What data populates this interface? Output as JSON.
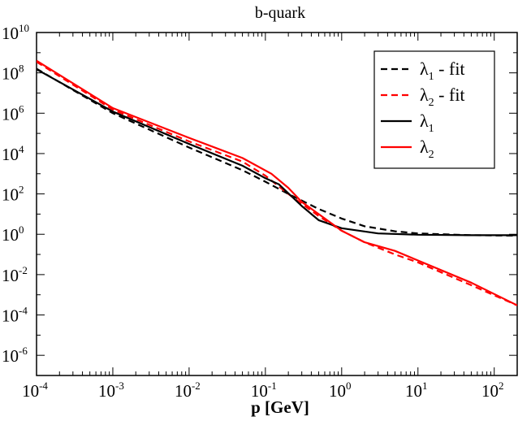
{
  "chart_data": {
    "type": "line",
    "title": "b-quark",
    "xlabel": "p [GeV]",
    "ylabel": "",
    "xscale": "log",
    "yscale": "log",
    "xlim": [
      0.0001,
      200
    ],
    "ylim": [
      1e-07,
      10000000000.0
    ],
    "x_ticks": [
      {
        "base": "10",
        "exp": "-4",
        "value": 0.0001
      },
      {
        "base": "10",
        "exp": "-3",
        "value": 0.001
      },
      {
        "base": "10",
        "exp": "-2",
        "value": 0.01
      },
      {
        "base": "10",
        "exp": "-1",
        "value": 0.1
      },
      {
        "base": "10",
        "exp": "0",
        "value": 1
      },
      {
        "base": "10",
        "exp": "1",
        "value": 10
      },
      {
        "base": "10",
        "exp": "2",
        "value": 100
      }
    ],
    "y_ticks": [
      {
        "base": "10",
        "exp": "-6",
        "value": 1e-06
      },
      {
        "base": "10",
        "exp": "-4",
        "value": 0.0001
      },
      {
        "base": "10",
        "exp": "-2",
        "value": 0.01
      },
      {
        "base": "10",
        "exp": "0",
        "value": 1
      },
      {
        "base": "10",
        "exp": "2",
        "value": 100
      },
      {
        "base": "10",
        "exp": "4",
        "value": 10000.0
      },
      {
        "base": "10",
        "exp": "6",
        "value": 1000000.0
      },
      {
        "base": "10",
        "exp": "8",
        "value": 100000000.0
      },
      {
        "base": "10",
        "exp": "10",
        "value": 10000000000.0
      }
    ],
    "legend_position": "top-right",
    "series": [
      {
        "name": "λ1 - fit",
        "label_main": "λ",
        "label_sub": "1",
        "label_suffix": " - fit",
        "color": "#000000",
        "dash": "dashed",
        "points": [
          [
            0.0001,
            160000000.0
          ],
          [
            0.001,
            1000000.0
          ],
          [
            0.01,
            20000.0
          ],
          [
            0.05,
            1500.0
          ],
          [
            0.1,
            400.0
          ],
          [
            0.2,
            100.0
          ],
          [
            0.5,
            18.0
          ],
          [
            1,
            6.0
          ],
          [
            2,
            2.5
          ],
          [
            5,
            1.4
          ],
          [
            10,
            1.1
          ],
          [
            50,
            0.9
          ],
          [
            200,
            0.85
          ]
        ]
      },
      {
        "name": "λ2 - fit",
        "label_main": "λ",
        "label_sub": "2",
        "label_suffix": " - fit",
        "color": "#ff0000",
        "dash": "dashed",
        "points": [
          [
            0.0001,
            350000000.0
          ],
          [
            0.001,
            1500000.0
          ],
          [
            0.01,
            40000.0
          ],
          [
            0.05,
            4000.0
          ],
          [
            0.1,
            800.0
          ],
          [
            0.2,
            100.0
          ],
          [
            0.5,
            8.0
          ],
          [
            1,
            1.5
          ],
          [
            2,
            0.4
          ],
          [
            5,
            0.1
          ],
          [
            10,
            0.04
          ],
          [
            50,
            0.003
          ],
          [
            200,
            0.0003
          ]
        ]
      },
      {
        "name": "λ1",
        "label_main": "λ",
        "label_sub": "1",
        "label_suffix": "",
        "color": "#000000",
        "dash": "solid",
        "points": [
          [
            0.0001,
            150000000.0
          ],
          [
            0.001,
            1200000.0
          ],
          [
            0.01,
            30000.0
          ],
          [
            0.05,
            2500.0
          ],
          [
            0.1,
            600.0
          ],
          [
            0.15,
            300.0
          ],
          [
            0.3,
            25.0
          ],
          [
            0.5,
            5.0
          ],
          [
            1,
            2.0
          ],
          [
            3,
            1.1
          ],
          [
            10,
            0.95
          ],
          [
            50,
            0.9
          ],
          [
            200,
            0.9
          ]
        ]
      },
      {
        "name": "λ2",
        "label_main": "λ",
        "label_sub": "2",
        "label_suffix": "",
        "color": "#ff0000",
        "dash": "solid",
        "points": [
          [
            0.0001,
            400000000.0
          ],
          [
            0.001,
            1800000.0
          ],
          [
            0.01,
            60000.0
          ],
          [
            0.05,
            6000.0
          ],
          [
            0.12,
            1000.0
          ],
          [
            0.2,
            200.0
          ],
          [
            0.3,
            40.0
          ],
          [
            0.5,
            10.0
          ],
          [
            1,
            1.5
          ],
          [
            2,
            0.4
          ],
          [
            5,
            0.15
          ],
          [
            10,
            0.05
          ],
          [
            50,
            0.004
          ],
          [
            200,
            0.0003
          ]
        ]
      }
    ]
  }
}
